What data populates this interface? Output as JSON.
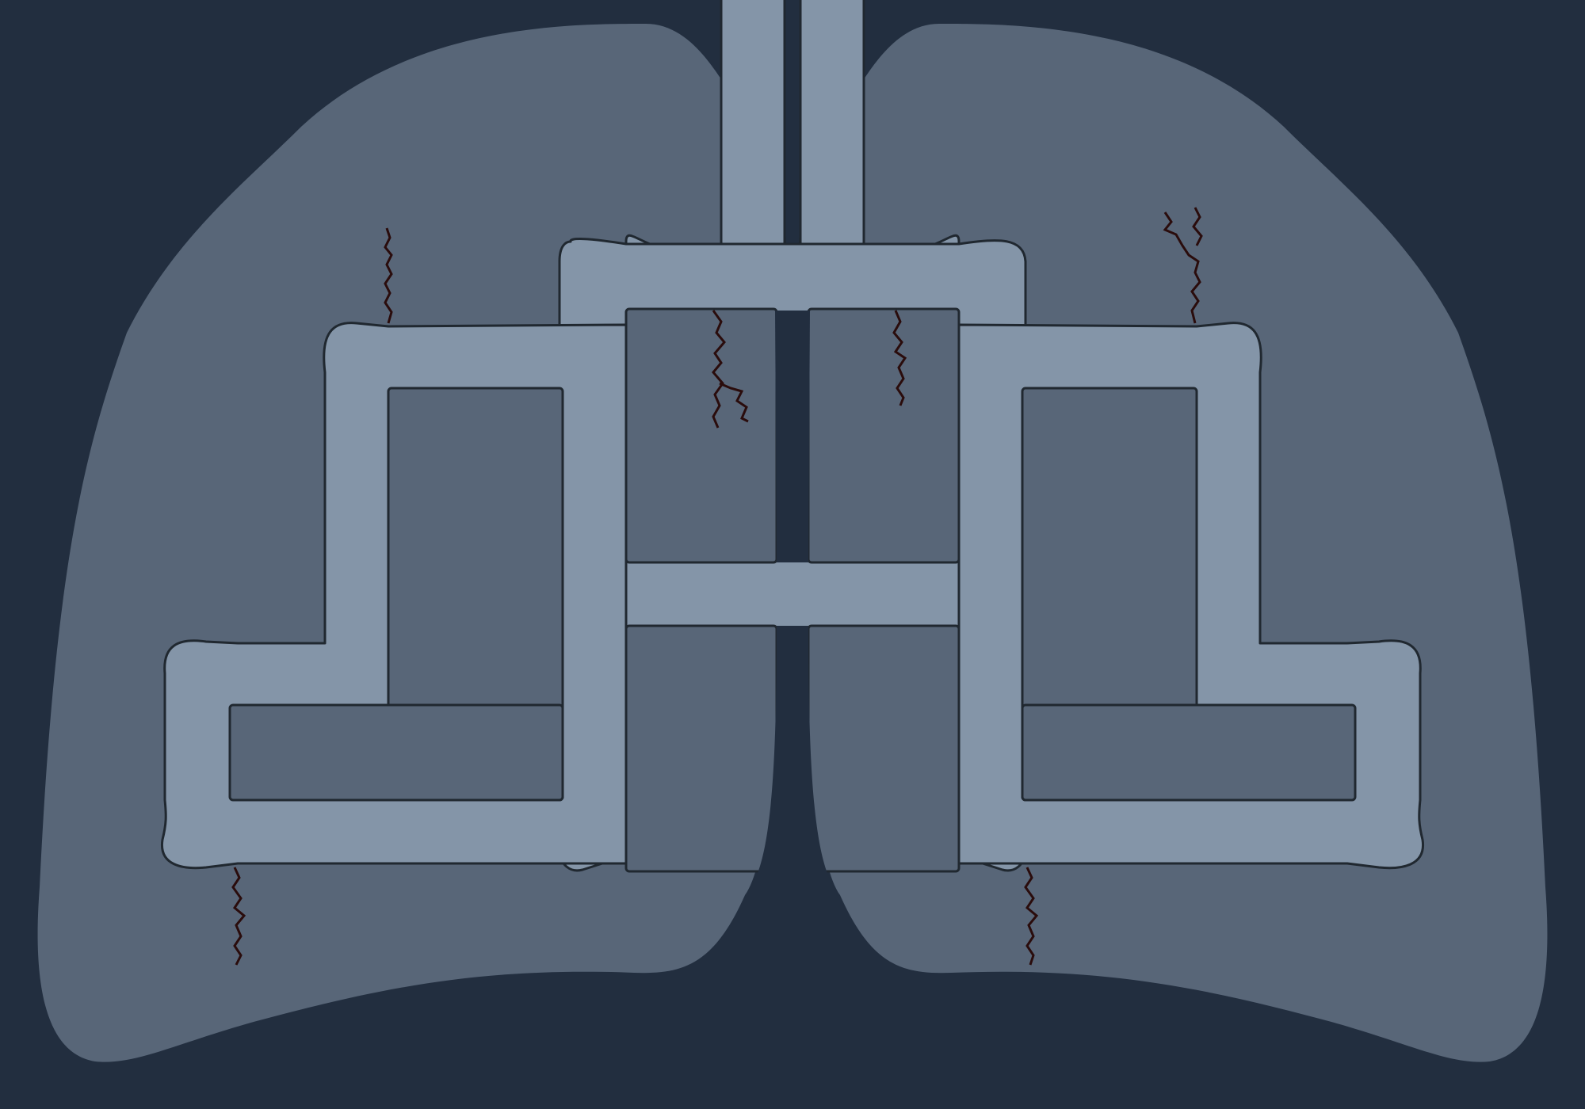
{
  "game": {
    "name": "lungs-pipe-maze",
    "colors": {
      "background": "#222e3f",
      "lung_tissue": "#586678",
      "airway": "#8495a8",
      "outline": "#202830",
      "crack": "#2a0c0c"
    },
    "crack_count": 6,
    "lobes": [
      "left-lung",
      "right-lung"
    ]
  }
}
